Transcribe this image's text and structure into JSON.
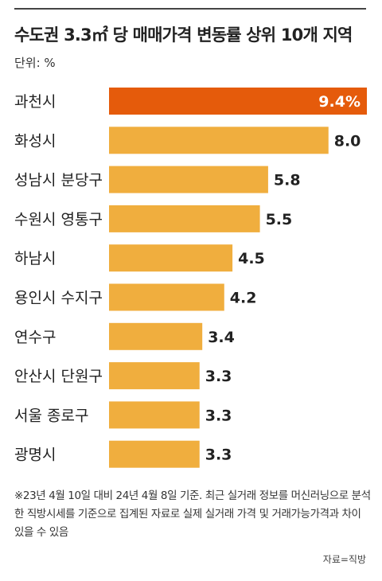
{
  "header": {
    "title": "수도권 3.3㎡ 당 매매가격 변동률 상위 10개 지역",
    "unit": "단위: %"
  },
  "chart_data": {
    "type": "bar",
    "orientation": "horizontal",
    "title": "수도권 3.3㎡ 당 매매가격 변동률 상위 10개 지역",
    "unit": "단위: %",
    "categories": [
      "과천시",
      "화성시",
      "성남시 분당구",
      "수원시 영통구",
      "하남시",
      "용인시 수지구",
      "연수구",
      "안산시 단원구",
      "서울 종로구",
      "광명시"
    ],
    "values": [
      9.4,
      8.0,
      5.8,
      5.5,
      4.5,
      4.2,
      3.4,
      3.3,
      3.3,
      3.3
    ],
    "value_labels": [
      "9.4%",
      "8.0",
      "5.8",
      "5.5",
      "4.5",
      "4.2",
      "3.4",
      "3.3",
      "3.3",
      "3.3"
    ],
    "highlight_index": 0,
    "colors": {
      "bar": "#F0AE3E",
      "highlight": "#E55B0B",
      "highlight_label": "#FFFFFF",
      "label": "#222222"
    },
    "grid": false,
    "legend": "none"
  },
  "footer": {
    "note": "※23년 4월 10일 대비 24년 4월 8일 기준. 최근 실거래 정보를 머신러닝으로 분석한 직방시세를 기준으로 집계된 자료로 실제 실거래 가격 및 거래가능가격과 차이 있을 수 있음",
    "source": "자료=직방"
  }
}
